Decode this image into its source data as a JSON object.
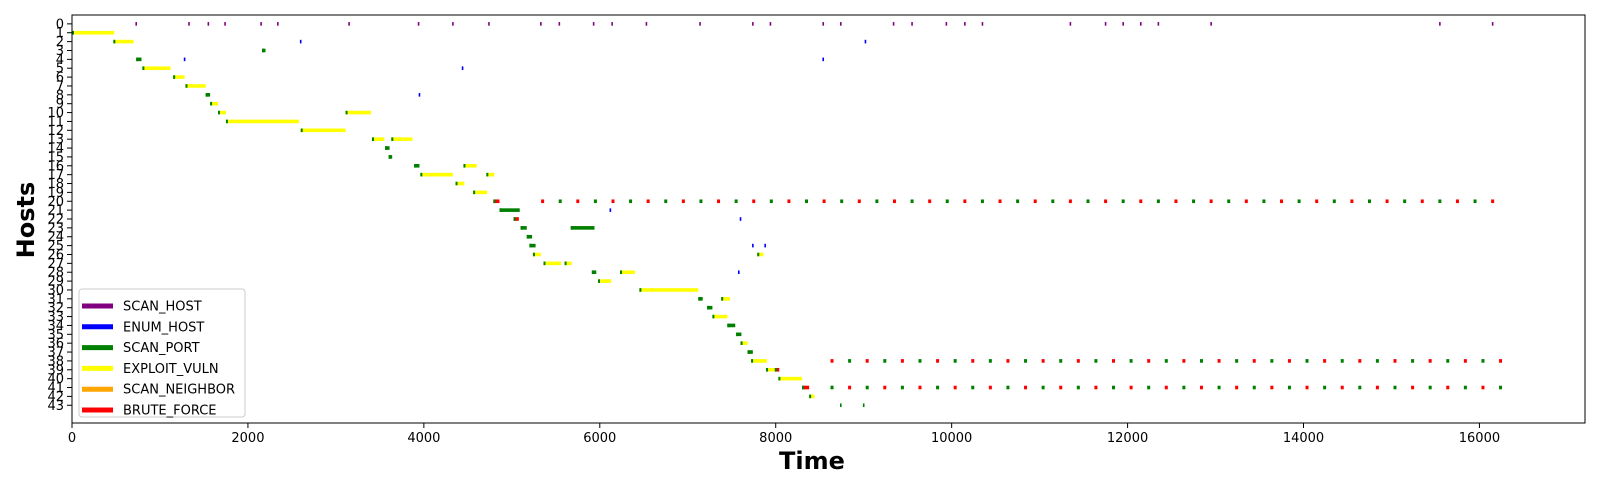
{
  "chart_data": {
    "type": "timeline",
    "title": "",
    "xlabel": "Time",
    "ylabel": "Hosts",
    "xlim": [
      0,
      17200
    ],
    "ylim": [
      -1,
      45
    ],
    "x_ticks": [
      0,
      2000,
      4000,
      6000,
      8000,
      10000,
      12000,
      14000,
      16000
    ],
    "hosts": [
      "0",
      "1",
      "2",
      "3",
      "4",
      "5",
      "6",
      "7",
      "8",
      "9",
      "10",
      "11",
      "12",
      "13",
      "14",
      "15",
      "16",
      "17",
      "18",
      "19",
      "20",
      "21",
      "22",
      "23",
      "24",
      "25",
      "26",
      "27",
      "28",
      "29",
      "30",
      "31",
      "32",
      "33",
      "34",
      "35",
      "36",
      "37",
      "38",
      "39",
      "40",
      "41",
      "42",
      "43"
    ],
    "legend_position": "lower-left",
    "grid": false,
    "actions": [
      {
        "name": "SCAN_HOST",
        "color": "#800080"
      },
      {
        "name": "ENUM_HOST",
        "color": "#0000ff"
      },
      {
        "name": "SCAN_PORT",
        "color": "#008000"
      },
      {
        "name": "EXPLOIT_VULN",
        "color": "#ffff00"
      },
      {
        "name": "SCAN_NEIGHBOR",
        "color": "#ffa500"
      },
      {
        "name": "BRUTE_FORCE",
        "color": "#ff0000"
      }
    ],
    "segments": [
      {
        "host": 1,
        "start": 0,
        "end": 480,
        "action": "EXPLOIT_VULN"
      },
      {
        "host": 2,
        "start": 470,
        "end": 700,
        "action": "EXPLOIT_VULN"
      },
      {
        "host": 4,
        "start": 730,
        "end": 790,
        "action": "SCAN_PORT"
      },
      {
        "host": 5,
        "start": 800,
        "end": 1120,
        "action": "EXPLOIT_VULN"
      },
      {
        "host": 6,
        "start": 1150,
        "end": 1280,
        "action": "EXPLOIT_VULN"
      },
      {
        "host": 7,
        "start": 1290,
        "end": 1520,
        "action": "EXPLOIT_VULN"
      },
      {
        "host": 8,
        "start": 1520,
        "end": 1570,
        "action": "SCAN_PORT"
      },
      {
        "host": 9,
        "start": 1570,
        "end": 1660,
        "action": "EXPLOIT_VULN"
      },
      {
        "host": 10,
        "start": 1660,
        "end": 1750,
        "action": "EXPLOIT_VULN"
      },
      {
        "host": 11,
        "start": 1750,
        "end": 2580,
        "action": "EXPLOIT_VULN"
      },
      {
        "host": 12,
        "start": 2600,
        "end": 3110,
        "action": "EXPLOIT_VULN"
      },
      {
        "host": 10,
        "start": 3110,
        "end": 3400,
        "action": "EXPLOIT_VULN"
      },
      {
        "host": 13,
        "start": 3410,
        "end": 3550,
        "action": "EXPLOIT_VULN"
      },
      {
        "host": 13,
        "start": 3630,
        "end": 3870,
        "action": "EXPLOIT_VULN"
      },
      {
        "host": 14,
        "start": 3560,
        "end": 3610,
        "action": "SCAN_PORT"
      },
      {
        "host": 15,
        "start": 3600,
        "end": 3640,
        "action": "SCAN_PORT"
      },
      {
        "host": 16,
        "start": 3890,
        "end": 3950,
        "action": "SCAN_PORT"
      },
      {
        "host": 17,
        "start": 3960,
        "end": 4330,
        "action": "EXPLOIT_VULN"
      },
      {
        "host": 18,
        "start": 4360,
        "end": 4460,
        "action": "EXPLOIT_VULN"
      },
      {
        "host": 16,
        "start": 4450,
        "end": 4600,
        "action": "EXPLOIT_VULN"
      },
      {
        "host": 19,
        "start": 4560,
        "end": 4720,
        "action": "EXPLOIT_VULN"
      },
      {
        "host": 17,
        "start": 4710,
        "end": 4800,
        "action": "EXPLOIT_VULN"
      },
      {
        "host": 20,
        "start": 4790,
        "end": 4860,
        "action": "BRUTE_FORCE"
      },
      {
        "host": 21,
        "start": 4860,
        "end": 5090,
        "action": "SCAN_PORT"
      },
      {
        "host": 22,
        "start": 5020,
        "end": 5080,
        "action": "BRUTE_FORCE"
      },
      {
        "host": 23,
        "start": 5100,
        "end": 5170,
        "action": "SCAN_PORT"
      },
      {
        "host": 24,
        "start": 5170,
        "end": 5230,
        "action": "SCAN_PORT"
      },
      {
        "host": 25,
        "start": 5200,
        "end": 5270,
        "action": "SCAN_PORT"
      },
      {
        "host": 26,
        "start": 5240,
        "end": 5330,
        "action": "EXPLOIT_VULN"
      },
      {
        "host": 27,
        "start": 5360,
        "end": 5560,
        "action": "EXPLOIT_VULN"
      },
      {
        "host": 27,
        "start": 5600,
        "end": 5680,
        "action": "EXPLOIT_VULN"
      },
      {
        "host": 23,
        "start": 5670,
        "end": 5940,
        "action": "SCAN_PORT"
      },
      {
        "host": 28,
        "start": 5910,
        "end": 5960,
        "action": "SCAN_PORT"
      },
      {
        "host": 29,
        "start": 5980,
        "end": 6130,
        "action": "EXPLOIT_VULN"
      },
      {
        "host": 28,
        "start": 6230,
        "end": 6400,
        "action": "EXPLOIT_VULN"
      },
      {
        "host": 30,
        "start": 6450,
        "end": 7120,
        "action": "EXPLOIT_VULN"
      },
      {
        "host": 31,
        "start": 7120,
        "end": 7170,
        "action": "SCAN_PORT"
      },
      {
        "host": 31,
        "start": 7380,
        "end": 7480,
        "action": "EXPLOIT_VULN"
      },
      {
        "host": 32,
        "start": 7220,
        "end": 7280,
        "action": "SCAN_PORT"
      },
      {
        "host": 33,
        "start": 7280,
        "end": 7450,
        "action": "EXPLOIT_VULN"
      },
      {
        "host": 34,
        "start": 7450,
        "end": 7540,
        "action": "SCAN_PORT"
      },
      {
        "host": 35,
        "start": 7550,
        "end": 7610,
        "action": "SCAN_PORT"
      },
      {
        "host": 36,
        "start": 7600,
        "end": 7680,
        "action": "EXPLOIT_VULN"
      },
      {
        "host": 37,
        "start": 7680,
        "end": 7740,
        "action": "SCAN_PORT"
      },
      {
        "host": 26,
        "start": 7790,
        "end": 7860,
        "action": "EXPLOIT_VULN"
      },
      {
        "host": 38,
        "start": 7720,
        "end": 7900,
        "action": "EXPLOIT_VULN"
      },
      {
        "host": 39,
        "start": 7890,
        "end": 7990,
        "action": "EXPLOIT_VULN"
      },
      {
        "host": 39,
        "start": 7990,
        "end": 8040,
        "action": "BRUTE_FORCE"
      },
      {
        "host": 40,
        "start": 8030,
        "end": 8300,
        "action": "EXPLOIT_VULN"
      },
      {
        "host": 41,
        "start": 8300,
        "end": 8380,
        "action": "BRUTE_FORCE"
      },
      {
        "host": 42,
        "start": 8380,
        "end": 8440,
        "action": "EXPLOIT_VULN"
      },
      {
        "host": 3,
        "start": 2160,
        "end": 2200,
        "action": "SCAN_PORT"
      }
    ],
    "events": [
      {
        "host": 0,
        "x": [
          730,
          1330,
          1550,
          1740,
          2150,
          2340,
          3150,
          3940,
          4330,
          4740,
          5330,
          5540,
          5930,
          6140,
          6530,
          7140,
          7740,
          7940,
          8540,
          8740,
          9340,
          9550,
          9940,
          10150,
          10350,
          11350,
          11750,
          11950,
          12150,
          12350,
          12950,
          15550,
          16150
        ],
        "action": "SCAN_HOST"
      },
      {
        "host": 2,
        "x": [
          2600,
          9020
        ],
        "action": "ENUM_HOST"
      },
      {
        "host": 4,
        "x": [
          1280,
          8540
        ],
        "action": "ENUM_HOST"
      },
      {
        "host": 5,
        "x": [
          4440
        ],
        "action": "ENUM_HOST"
      },
      {
        "host": 8,
        "x": [
          3950
        ],
        "action": "ENUM_HOST"
      },
      {
        "host": 21,
        "x": [
          6120
        ],
        "action": "ENUM_HOST"
      },
      {
        "host": 22,
        "x": [
          7600
        ],
        "action": "ENUM_HOST"
      },
      {
        "host": 25,
        "x": [
          7740,
          7880
        ],
        "action": "ENUM_HOST"
      },
      {
        "host": 28,
        "x": [
          7580
        ],
        "action": "ENUM_HOST"
      },
      {
        "host": 43,
        "x": [
          8740,
          9000
        ],
        "action": "SCAN_PORT"
      }
    ],
    "recurring": [
      {
        "host": 20,
        "start": 5350,
        "end": 16200,
        "step": 200,
        "actions": [
          "BRUTE_FORCE",
          "SCAN_PORT",
          "BRUTE_FORCE",
          "SCAN_PORT"
        ]
      },
      {
        "host": 38,
        "start": 8640,
        "end": 16250,
        "step": 200,
        "actions": [
          "BRUTE_FORCE",
          "SCAN_PORT",
          "BRUTE_FORCE",
          "SCAN_PORT"
        ]
      },
      {
        "host": 41,
        "start": 8640,
        "end": 16380,
        "step": 200,
        "actions": [
          "SCAN_PORT",
          "BRUTE_FORCE",
          "SCAN_PORT",
          "BRUTE_FORCE"
        ]
      }
    ]
  }
}
